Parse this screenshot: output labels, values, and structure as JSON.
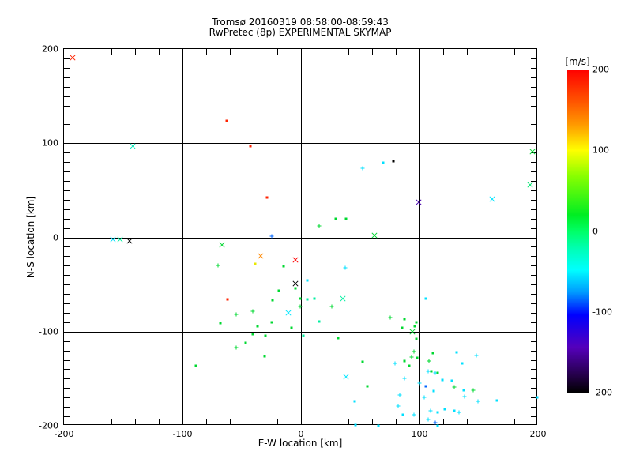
{
  "title": {
    "line1": "Tromsø 20160319 08:58:00-08:59:43",
    "line2": "RwPretec (8p) EXPERIMENTAL SKYMAP"
  },
  "chart_data": {
    "type": "scatter",
    "xlabel": "E-W location [km]",
    "ylabel": "N-S location [km]",
    "xlim": [
      -200,
      200
    ],
    "ylim": [
      -200,
      200
    ],
    "xticks": [
      -200,
      -100,
      0,
      100,
      200
    ],
    "yticks": [
      -200,
      -100,
      0,
      100,
      200
    ],
    "x_minor_step": 20,
    "y_minor_step": 10,
    "grid": true,
    "axis_color": "#000000",
    "background": "#ffffff",
    "colorbar": {
      "title": "[m/s]",
      "min": -200,
      "max": 200,
      "ticks": [
        200,
        100,
        0,
        -100,
        -200
      ],
      "colors_top_to_bottom": [
        "#ff0000",
        "#ff9900",
        "#ffff00",
        "#00ee22",
        "#00ffff",
        "#0000ff",
        "#5500bb",
        "#000000"
      ]
    },
    "points": [
      {
        "x": -193,
        "y": 191,
        "c": "#ff2200",
        "m": "x"
      },
      {
        "x": -142,
        "y": 97,
        "c": "#00e8b8",
        "m": "x"
      },
      {
        "x": -159,
        "y": -2,
        "c": "#00e0ff",
        "m": "x"
      },
      {
        "x": -153,
        "y": -2,
        "c": "#00efa0",
        "m": "x"
      },
      {
        "x": -145,
        "y": -4,
        "c": "#000000",
        "m": "x"
      },
      {
        "x": -67,
        "y": -8,
        "c": "#00d830",
        "m": "x"
      },
      {
        "x": -34,
        "y": -20,
        "c": "#ff8800",
        "m": "x"
      },
      {
        "x": -5,
        "y": -24,
        "c": "#ff0000",
        "m": "x"
      },
      {
        "x": -5,
        "y": -49,
        "c": "#000000",
        "m": "x"
      },
      {
        "x": -11,
        "y": -80,
        "c": "#00e5ff",
        "m": "x"
      },
      {
        "x": 38,
        "y": -148,
        "c": "#00e5ff",
        "m": "x"
      },
      {
        "x": 35,
        "y": -65,
        "c": "#00efa0",
        "m": "x"
      },
      {
        "x": 62,
        "y": 2,
        "c": "#00d830",
        "m": "x"
      },
      {
        "x": 94,
        "y": -100,
        "c": "#00d830",
        "m": "x"
      },
      {
        "x": 99,
        "y": 37,
        "c": "#4400aa",
        "m": "x"
      },
      {
        "x": 161,
        "y": 41,
        "c": "#00e5ff",
        "m": "x"
      },
      {
        "x": 193,
        "y": 56,
        "c": "#00e870",
        "m": "x"
      },
      {
        "x": 195,
        "y": 91,
        "c": "#00d830",
        "m": "x"
      },
      {
        "x": -63,
        "y": 124,
        "c": "#ff2200",
        "m": "d"
      },
      {
        "x": -43,
        "y": 97,
        "c": "#ff2200",
        "m": "d"
      },
      {
        "x": -29,
        "y": 42,
        "c": "#ff2200",
        "m": "d"
      },
      {
        "x": -25,
        "y": 1,
        "c": "#0066ff",
        "m": "p"
      },
      {
        "x": -62,
        "y": -66,
        "c": "#ff2200",
        "m": "d"
      },
      {
        "x": -39,
        "y": -28,
        "c": "#e8e800",
        "m": "d"
      },
      {
        "x": -70,
        "y": -30,
        "c": "#00d830",
        "m": "p"
      },
      {
        "x": -15,
        "y": -31,
        "c": "#00d830",
        "m": "d"
      },
      {
        "x": -5,
        "y": -54,
        "c": "#00d830",
        "m": "d"
      },
      {
        "x": -19,
        "y": -57,
        "c": "#00d830",
        "m": "d"
      },
      {
        "x": -24,
        "y": -67,
        "c": "#00d830",
        "m": "d"
      },
      {
        "x": -1,
        "y": -65,
        "c": "#00d830",
        "m": "d"
      },
      {
        "x": -1,
        "y": -73,
        "c": "#00d830",
        "m": "p"
      },
      {
        "x": -41,
        "y": -78,
        "c": "#00d830",
        "m": "p"
      },
      {
        "x": -55,
        "y": -82,
        "c": "#00d830",
        "m": "p"
      },
      {
        "x": -37,
        "y": -94,
        "c": "#00d830",
        "m": "d"
      },
      {
        "x": -25,
        "y": -90,
        "c": "#00d830",
        "m": "d"
      },
      {
        "x": -68,
        "y": -91,
        "c": "#00d830",
        "m": "d"
      },
      {
        "x": -8,
        "y": -96,
        "c": "#00d830",
        "m": "d"
      },
      {
        "x": -41,
        "y": -103,
        "c": "#00d830",
        "m": "d"
      },
      {
        "x": -30,
        "y": -104,
        "c": "#00d830",
        "m": "d"
      },
      {
        "x": -47,
        "y": -112,
        "c": "#00d830",
        "m": "d"
      },
      {
        "x": -55,
        "y": -117,
        "c": "#00d830",
        "m": "p"
      },
      {
        "x": -31,
        "y": -126,
        "c": "#00d830",
        "m": "d"
      },
      {
        "x": -89,
        "y": -136,
        "c": "#00d830",
        "m": "d"
      },
      {
        "x": 69,
        "y": 79,
        "c": "#00e0ff",
        "m": "d"
      },
      {
        "x": 78,
        "y": 81,
        "c": "#000000",
        "m": "d"
      },
      {
        "x": 52,
        "y": 73,
        "c": "#00e0ff",
        "m": "p"
      },
      {
        "x": 15,
        "y": 12,
        "c": "#00d830",
        "m": "p"
      },
      {
        "x": 29,
        "y": 20,
        "c": "#00d830",
        "m": "d"
      },
      {
        "x": 38,
        "y": 20,
        "c": "#00d830",
        "m": "d"
      },
      {
        "x": 37,
        "y": -32,
        "c": "#00e0ff",
        "m": "p"
      },
      {
        "x": 5,
        "y": -46,
        "c": "#00e0ff",
        "m": "d"
      },
      {
        "x": 5,
        "y": -66,
        "c": "#00efa0",
        "m": "d"
      },
      {
        "x": 11,
        "y": -65,
        "c": "#00efa0",
        "m": "d"
      },
      {
        "x": 26,
        "y": -73,
        "c": "#00d830",
        "m": "p"
      },
      {
        "x": 15,
        "y": -89,
        "c": "#00efa0",
        "m": "d"
      },
      {
        "x": 105,
        "y": -65,
        "c": "#00e0ff",
        "m": "d"
      },
      {
        "x": 2,
        "y": -104,
        "c": "#00efa0",
        "m": "d"
      },
      {
        "x": 31,
        "y": -107,
        "c": "#00d830",
        "m": "d"
      },
      {
        "x": 52,
        "y": -132,
        "c": "#00d830",
        "m": "d"
      },
      {
        "x": 56,
        "y": -158,
        "c": "#00d830",
        "m": "d"
      },
      {
        "x": 45,
        "y": -174,
        "c": "#00e0ff",
        "m": "d"
      },
      {
        "x": 46,
        "y": -199,
        "c": "#00e0ff",
        "m": "d"
      },
      {
        "x": 65,
        "y": -200,
        "c": "#00e0ff",
        "m": "d"
      },
      {
        "x": 75,
        "y": -85,
        "c": "#00d830",
        "m": "p"
      },
      {
        "x": 87,
        "y": -87,
        "c": "#00d830",
        "m": "d"
      },
      {
        "x": 97,
        "y": -90,
        "c": "#00d830",
        "m": "d"
      },
      {
        "x": 85,
        "y": -96,
        "c": "#00d830",
        "m": "d"
      },
      {
        "x": 96,
        "y": -94,
        "c": "#00d830",
        "m": "d"
      },
      {
        "x": 97,
        "y": -108,
        "c": "#00d830",
        "m": "d"
      },
      {
        "x": 95,
        "y": -121,
        "c": "#00d830",
        "m": "p"
      },
      {
        "x": 93,
        "y": -127,
        "c": "#00d830",
        "m": "p"
      },
      {
        "x": 98,
        "y": -128,
        "c": "#00d830",
        "m": "d"
      },
      {
        "x": 79,
        "y": -134,
        "c": "#00e0ff",
        "m": "p"
      },
      {
        "x": 87,
        "y": -131,
        "c": "#00d830",
        "m": "d"
      },
      {
        "x": 91,
        "y": -136,
        "c": "#00d830",
        "m": "d"
      },
      {
        "x": 87,
        "y": -150,
        "c": "#00e0ff",
        "m": "p"
      },
      {
        "x": 83,
        "y": -167,
        "c": "#00e0ff",
        "m": "p"
      },
      {
        "x": 82,
        "y": -179,
        "c": "#00e0ff",
        "m": "p"
      },
      {
        "x": 86,
        "y": -188,
        "c": "#00e0ff",
        "m": "d"
      },
      {
        "x": 95,
        "y": -188,
        "c": "#00e0ff",
        "m": "p"
      },
      {
        "x": 111,
        "y": -123,
        "c": "#00d830",
        "m": "d"
      },
      {
        "x": 131,
        "y": -122,
        "c": "#00e0ff",
        "m": "d"
      },
      {
        "x": 148,
        "y": -125,
        "c": "#00e0ff",
        "m": "p"
      },
      {
        "x": 108,
        "y": -131,
        "c": "#00d830",
        "m": "p"
      },
      {
        "x": 136,
        "y": -134,
        "c": "#00e0ff",
        "m": "d"
      },
      {
        "x": 107,
        "y": -142,
        "c": "#00e0ff",
        "m": "p"
      },
      {
        "x": 113,
        "y": -144,
        "c": "#00e0ff",
        "m": "p"
      },
      {
        "x": 115,
        "y": -144,
        "c": "#00d830",
        "m": "d"
      },
      {
        "x": 110,
        "y": -142,
        "c": "#00d830",
        "m": "d"
      },
      {
        "x": 119,
        "y": -151,
        "c": "#00e0ff",
        "m": "d"
      },
      {
        "x": 127,
        "y": -152,
        "c": "#00e0ff",
        "m": "d"
      },
      {
        "x": 100,
        "y": -155,
        "c": "#00e0ff",
        "m": "p"
      },
      {
        "x": 105,
        "y": -158,
        "c": "#0066ff",
        "m": "d"
      },
      {
        "x": 129,
        "y": -159,
        "c": "#00d830",
        "m": "p"
      },
      {
        "x": 137,
        "y": -162,
        "c": "#00e0ff",
        "m": "d"
      },
      {
        "x": 145,
        "y": -162,
        "c": "#00d830",
        "m": "p"
      },
      {
        "x": 112,
        "y": -163,
        "c": "#00e0ff",
        "m": "d"
      },
      {
        "x": 138,
        "y": -169,
        "c": "#00e0ff",
        "m": "p"
      },
      {
        "x": 104,
        "y": -170,
        "c": "#00e0ff",
        "m": "p"
      },
      {
        "x": 149,
        "y": -174,
        "c": "#00e0ff",
        "m": "p"
      },
      {
        "x": 165,
        "y": -173,
        "c": "#00e0ff",
        "m": "d"
      },
      {
        "x": 199,
        "y": -170,
        "c": "#00e0ff",
        "m": "d"
      },
      {
        "x": 109,
        "y": -184,
        "c": "#00e0ff",
        "m": "p"
      },
      {
        "x": 115,
        "y": -186,
        "c": "#00e0ff",
        "m": "d"
      },
      {
        "x": 121,
        "y": -182,
        "c": "#00e0ff",
        "m": "d"
      },
      {
        "x": 129,
        "y": -184,
        "c": "#00e0ff",
        "m": "d"
      },
      {
        "x": 133,
        "y": -186,
        "c": "#00e0ff",
        "m": "p"
      },
      {
        "x": 107,
        "y": -193,
        "c": "#00e0ff",
        "m": "p"
      },
      {
        "x": 113,
        "y": -197,
        "c": "#0066ff",
        "m": "p"
      },
      {
        "x": 115,
        "y": -200,
        "c": "#00e0ff",
        "m": "d"
      }
    ]
  }
}
